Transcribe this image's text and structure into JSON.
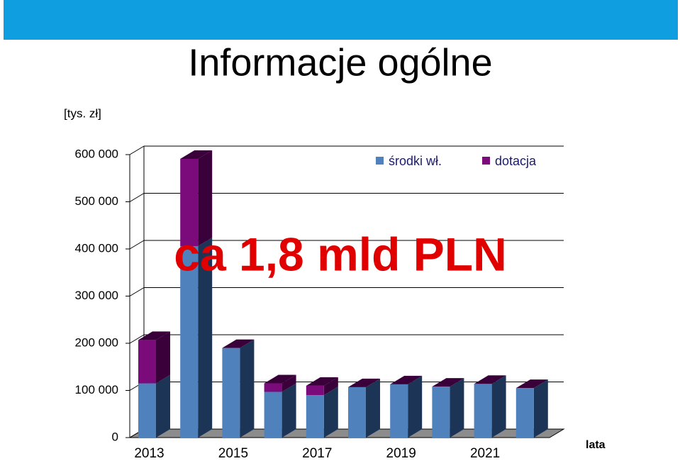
{
  "chart_data": {
    "type": "bar",
    "stacked": true,
    "title": "Informacje ogólne",
    "y_label": "[tys. zł]",
    "x_label": "lata",
    "annotation": "ca 1,8 mld PLN",
    "categories": [
      "2013",
      null,
      "2015",
      null,
      "2017",
      null,
      "2019",
      null,
      "2021",
      null
    ],
    "series": [
      {
        "name": "środki wł.",
        "color": "#4f81bd",
        "values": [
          115000,
          406000,
          190000,
          97000,
          90000,
          107000,
          113000,
          108000,
          114000,
          105000
        ]
      },
      {
        "name": "dotacja",
        "color": "#7b0a7b",
        "values": [
          92000,
          185000,
          0,
          18000,
          20000,
          0,
          0,
          0,
          0,
          0
        ]
      }
    ],
    "ylim": [
      0,
      600000
    ],
    "yticks": [
      0,
      {
        "value": 100000,
        "label": "100 000"
      },
      {
        "value": 200000,
        "label": "200 000"
      },
      {
        "value": 300000,
        "label": "300 000"
      },
      {
        "value": 400000,
        "label": "400 000"
      },
      {
        "value": 500000,
        "label": "500 000"
      },
      {
        "value": 600000,
        "label": "600 000"
      }
    ],
    "grid": true,
    "legend": "top-right"
  }
}
